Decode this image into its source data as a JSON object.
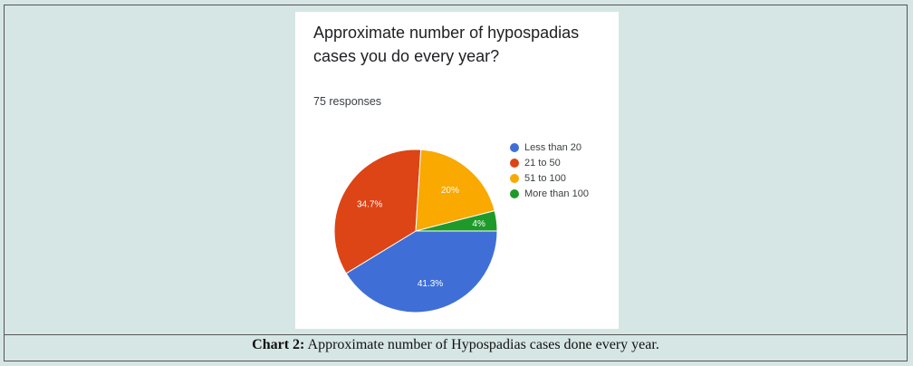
{
  "chart_data": {
    "type": "pie",
    "title": "Approximate number of hypospadias cases you do every year?",
    "subtitle": "75 responses",
    "slices": [
      {
        "label": "Less than 20",
        "value": 41.3,
        "display": "41.3%",
        "color": "#3f6fd6"
      },
      {
        "label": "21 to 50",
        "value": 34.7,
        "display": "34.7%",
        "color": "#dd4416"
      },
      {
        "label": "51 to 100",
        "value": 20,
        "display": "20%",
        "color": "#f9a900"
      },
      {
        "label": "More than 100",
        "value": 4,
        "display": "4%",
        "color": "#1e9a2a"
      }
    ],
    "legend_position": "right"
  },
  "caption": {
    "label": "Chart 2:",
    "text": " Approximate number of Hypospadias cases done every year."
  }
}
